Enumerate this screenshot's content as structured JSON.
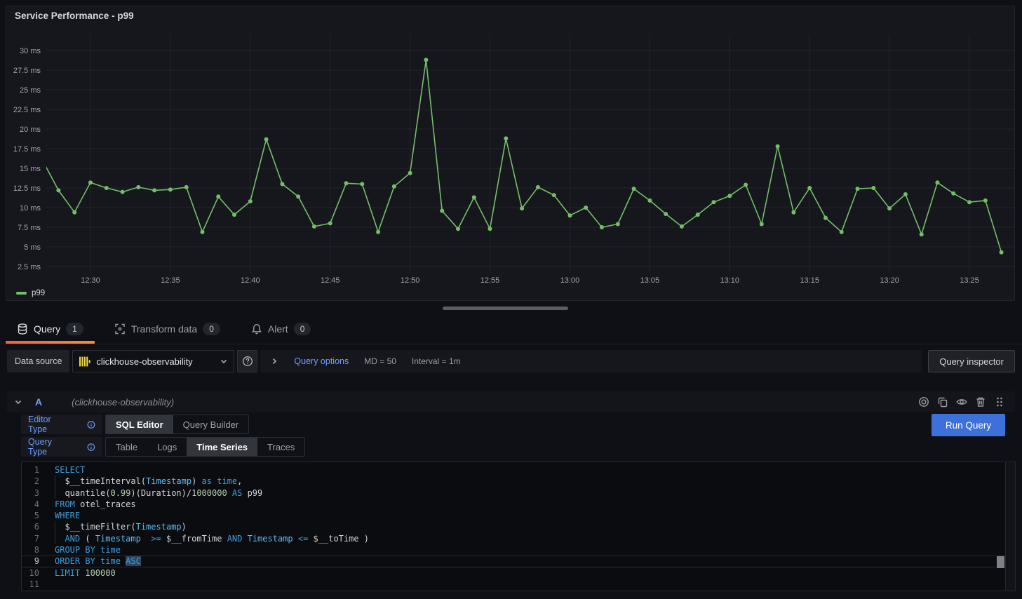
{
  "panel": {
    "title": "Service Performance - p99",
    "legend_label": "p99"
  },
  "chart_data": {
    "type": "line",
    "title": "Service Performance - p99",
    "unit": "ms",
    "legend": [
      "p99"
    ],
    "legend_position": "bottom-left",
    "grid": true,
    "ylim": [
      1.5,
      32.5
    ],
    "y_ticks": [
      2.5,
      5,
      7.5,
      10,
      12.5,
      15,
      17.5,
      20,
      22.5,
      25,
      27.5,
      30
    ],
    "y_tick_suffix": " ms",
    "x_ticks": [
      "12:30",
      "12:35",
      "12:40",
      "12:45",
      "12:50",
      "12:55",
      "13:00",
      "13:05",
      "13:10",
      "13:15",
      "13:20",
      "13:25"
    ],
    "series": [
      {
        "name": "p99",
        "color": "#73bf69",
        "x": [
          "12:27",
          "12:28",
          "12:29",
          "12:30",
          "12:31",
          "12:32",
          "12:33",
          "12:34",
          "12:35",
          "12:36",
          "12:37",
          "12:38",
          "12:39",
          "12:40",
          "12:41",
          "12:42",
          "12:43",
          "12:44",
          "12:45",
          "12:46",
          "12:47",
          "12:48",
          "12:49",
          "12:50",
          "12:51",
          "12:52",
          "12:53",
          "12:54",
          "12:55",
          "12:56",
          "12:57",
          "12:58",
          "12:59",
          "13:00",
          "13:01",
          "13:02",
          "13:03",
          "13:04",
          "13:05",
          "13:06",
          "13:07",
          "13:08",
          "13:09",
          "13:10",
          "13:11",
          "13:12",
          "13:13",
          "13:14",
          "13:15",
          "13:16",
          "13:17",
          "13:18",
          "13:19",
          "13:20",
          "13:21",
          "13:22",
          "13:23",
          "13:24",
          "13:25",
          "13:26",
          "13:27"
        ],
        "values": [
          16.0,
          12.2,
          9.4,
          13.2,
          12.5,
          12.0,
          12.6,
          12.2,
          12.3,
          12.6,
          6.9,
          11.4,
          9.1,
          10.8,
          18.7,
          13.0,
          11.4,
          7.6,
          8.0,
          13.1,
          13.0,
          6.9,
          12.7,
          14.4,
          28.8,
          9.6,
          7.3,
          11.3,
          7.3,
          18.8,
          9.9,
          12.6,
          11.6,
          9.0,
          10.0,
          7.5,
          7.9,
          12.4,
          10.9,
          9.2,
          7.6,
          9.1,
          10.7,
          11.5,
          12.9,
          7.9,
          17.8,
          9.4,
          12.5,
          8.7,
          6.9,
          12.4,
          12.5,
          9.9,
          11.7,
          6.6,
          13.2,
          11.8,
          10.7,
          10.9,
          4.3
        ]
      }
    ]
  },
  "tabs": [
    {
      "label": "Query",
      "badge": "1",
      "icon": "database"
    },
    {
      "label": "Transform data",
      "badge": "0",
      "icon": "transform"
    },
    {
      "label": "Alert",
      "badge": "0",
      "icon": "bell"
    }
  ],
  "datasource_bar": {
    "label": "Data source",
    "value": "clickhouse-observability",
    "options_link": "Query options",
    "md": "MD = 50",
    "interval": "Interval = 1m",
    "inspector_button": "Query inspector",
    "logo_color": "#f7e14b"
  },
  "query_row": {
    "ref_id": "A",
    "datasource_hint": "(clickhouse-observability)"
  },
  "editor_type": {
    "label": "Editor Type",
    "options": [
      "SQL Editor",
      "Query Builder"
    ],
    "selected": "SQL Editor"
  },
  "query_type": {
    "label": "Query Type",
    "options": [
      "Table",
      "Logs",
      "Time Series",
      "Traces"
    ],
    "selected": "Time Series"
  },
  "run_button_label": "Run Query",
  "sql_editor": {
    "current_line": 9,
    "indent_guides": [
      2,
      3,
      6,
      7
    ],
    "selected_text": "ASC",
    "query_text": "SELECT\n  $__timeInterval(Timestamp) as time,\n  quantile(0.99)(Duration)/1000000 AS p99\nFROM otel_traces\nWHERE\n  $__timeFilter(Timestamp)\n  AND ( Timestamp  >= $__fromTime AND Timestamp <= $__toTime )\nGROUP BY time\nORDER BY time ASC\nLIMIT 100000\n",
    "lines": [
      [
        [
          "k",
          "SELECT"
        ]
      ],
      [
        [
          "d",
          "  $__timeInterval("
        ],
        [
          "t",
          "Timestamp"
        ],
        [
          "d",
          ") "
        ],
        [
          "k",
          "as"
        ],
        [
          "d",
          " "
        ],
        [
          "k",
          "time"
        ],
        [
          "d",
          ","
        ]
      ],
      [
        [
          "d",
          "  quantile("
        ],
        [
          "n",
          "0.99"
        ],
        [
          "d",
          ")(Duration)/"
        ],
        [
          "n",
          "1000000"
        ],
        [
          "d",
          " "
        ],
        [
          "k",
          "AS"
        ],
        [
          "d",
          " p99"
        ]
      ],
      [
        [
          "k",
          "FROM"
        ],
        [
          "d",
          " otel_traces"
        ]
      ],
      [
        [
          "k",
          "WHERE"
        ]
      ],
      [
        [
          "d",
          "  $__timeFilter("
        ],
        [
          "t",
          "Timestamp"
        ],
        [
          "d",
          ")"
        ]
      ],
      [
        [
          "d",
          "  "
        ],
        [
          "k",
          "AND"
        ],
        [
          "d",
          " ( "
        ],
        [
          "t",
          "Timestamp"
        ],
        [
          "d",
          "  "
        ],
        [
          "k",
          ">="
        ],
        [
          "d",
          " $__fromTime "
        ],
        [
          "k",
          "AND"
        ],
        [
          "d",
          " "
        ],
        [
          "t",
          "Timestamp"
        ],
        [
          "d",
          " "
        ],
        [
          "k",
          "<="
        ],
        [
          "d",
          " $__toTime )"
        ]
      ],
      [
        [
          "k",
          "GROUP BY"
        ],
        [
          "d",
          " "
        ],
        [
          "k",
          "time"
        ]
      ],
      [
        [
          "k",
          "ORDER BY"
        ],
        [
          "d",
          " "
        ],
        [
          "k",
          "time"
        ],
        [
          "d",
          " "
        ],
        [
          "k sel",
          "ASC"
        ]
      ],
      [
        [
          "k",
          "LIMIT"
        ],
        [
          "d",
          " "
        ],
        [
          "n",
          "100000"
        ]
      ],
      []
    ]
  }
}
